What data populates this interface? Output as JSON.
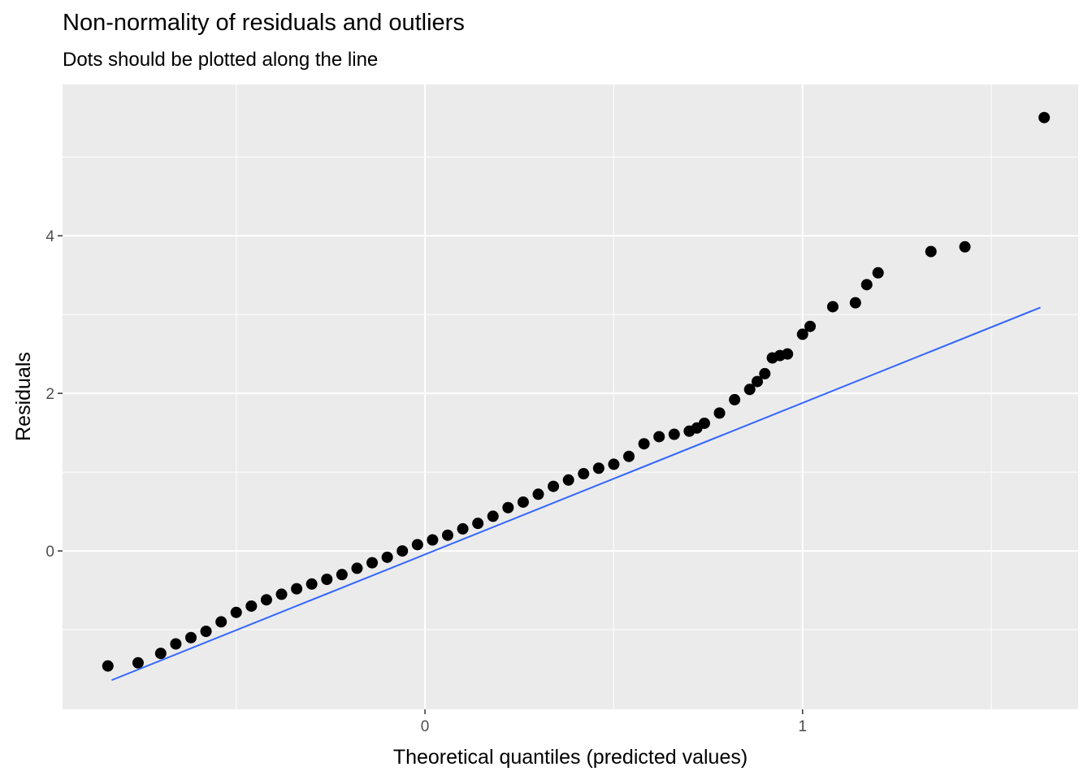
{
  "chart_data": {
    "type": "scatter",
    "title": "Non-normality of residuals and outliers",
    "subtitle": "Dots should be plotted along the line",
    "xlabel": "Theoretical quantiles (predicted values)",
    "ylabel": "Residuals",
    "xlim": [
      -0.96,
      1.73
    ],
    "ylim": [
      -2.01,
      5.92
    ],
    "x_ticks": [
      0,
      1
    ],
    "x_tick_labels": [
      "0",
      "1"
    ],
    "y_ticks": [
      0,
      2,
      4
    ],
    "y_tick_labels": [
      "0",
      "2",
      "4"
    ],
    "grid": true,
    "background": "#ebebeb",
    "point_color": "#000000",
    "line_color": "#3366ff",
    "reference_line": {
      "x": [
        -0.83,
        1.63
      ],
      "y": [
        -1.64,
        3.09
      ]
    },
    "points": {
      "x": [
        -0.84,
        -0.76,
        -0.7,
        -0.66,
        -0.62,
        -0.58,
        -0.54,
        -0.5,
        -0.46,
        -0.42,
        -0.38,
        -0.34,
        -0.3,
        -0.26,
        -0.22,
        -0.18,
        -0.14,
        -0.1,
        -0.06,
        -0.02,
        0.02,
        0.06,
        0.1,
        0.14,
        0.18,
        0.22,
        0.26,
        0.3,
        0.34,
        0.38,
        0.42,
        0.46,
        0.5,
        0.54,
        0.58,
        0.62,
        0.66,
        0.7,
        0.72,
        0.74,
        0.78,
        0.82,
        0.86,
        0.88,
        0.9,
        0.92,
        0.94,
        0.96,
        1.0,
        1.02,
        1.08,
        1.14,
        1.17,
        1.2,
        1.34,
        1.43,
        1.64
      ],
      "y": [
        -1.46,
        -1.42,
        -1.3,
        -1.18,
        -1.1,
        -1.02,
        -0.9,
        -0.78,
        -0.7,
        -0.62,
        -0.55,
        -0.48,
        -0.42,
        -0.36,
        -0.3,
        -0.22,
        -0.15,
        -0.08,
        0.0,
        0.08,
        0.14,
        0.2,
        0.28,
        0.35,
        0.44,
        0.55,
        0.62,
        0.72,
        0.82,
        0.9,
        0.98,
        1.05,
        1.1,
        1.2,
        1.36,
        1.45,
        1.48,
        1.52,
        1.56,
        1.62,
        1.75,
        1.92,
        2.05,
        2.15,
        2.25,
        2.45,
        2.48,
        2.5,
        2.75,
        2.85,
        3.1,
        3.15,
        3.38,
        3.53,
        3.8,
        3.86,
        5.5
      ]
    }
  }
}
